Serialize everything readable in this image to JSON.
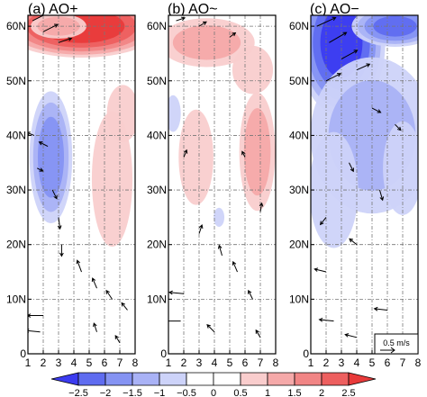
{
  "chart_data": [
    {
      "type": "heatmap",
      "title": "(a) AO+",
      "x": [
        1,
        2,
        3,
        4,
        5,
        6,
        7,
        8
      ],
      "x_tick_labels": [
        "1",
        "2",
        "3",
        "4",
        "5",
        "6",
        "7",
        "8"
      ],
      "y_tick_labels": [
        "0",
        "10N",
        "20N",
        "30N",
        "40N",
        "50N",
        "60N"
      ],
      "y_ticks": [
        0,
        10,
        20,
        30,
        40,
        50,
        60
      ],
      "xlim": [
        1,
        8
      ],
      "ylim": [
        0,
        62
      ],
      "grid": true,
      "blobs": [
        {
          "x": 4.5,
          "y": 60,
          "rx": 5.5,
          "ry": 6,
          "value": 2.8
        },
        {
          "x": 3.0,
          "y": 60,
          "rx": 2.0,
          "ry": 2.5,
          "value": 1.2
        },
        {
          "x": 2.5,
          "y": 36,
          "rx": 1.5,
          "ry": 13,
          "value": -1.6
        },
        {
          "x": 6.5,
          "y": 32,
          "rx": 1.5,
          "ry": 14,
          "value": 0.9
        },
        {
          "x": 7.2,
          "y": 44,
          "rx": 1.2,
          "ry": 6,
          "value": 0.8
        }
      ],
      "vectors": [
        {
          "x": 1.3,
          "y": 61,
          "u": 1.2,
          "v": 0.6
        },
        {
          "x": 2.0,
          "y": 59,
          "u": 1.0,
          "v": 0.5
        },
        {
          "x": 3.0,
          "y": 57,
          "u": 0.9,
          "v": 0.3
        },
        {
          "x": 1.4,
          "y": 40,
          "u": -0.5,
          "v": 0.2
        },
        {
          "x": 2.3,
          "y": 38,
          "u": -0.6,
          "v": 0.3
        },
        {
          "x": 1.6,
          "y": 34,
          "u": 0.4,
          "v": -0.2
        },
        {
          "x": 2.6,
          "y": 30,
          "u": 0.3,
          "v": -0.6
        },
        {
          "x": 3.0,
          "y": 25,
          "u": 0.1,
          "v": -0.8
        },
        {
          "x": 3.2,
          "y": 20,
          "u": 0.0,
          "v": -0.8
        },
        {
          "x": 4.5,
          "y": 15,
          "u": -0.3,
          "v": 0.8
        },
        {
          "x": 5.5,
          "y": 12,
          "u": -0.3,
          "v": 0.7
        },
        {
          "x": 6.5,
          "y": 10,
          "u": -0.4,
          "v": 0.6
        },
        {
          "x": 7.5,
          "y": 8,
          "u": -0.4,
          "v": 0.5
        },
        {
          "x": 2.0,
          "y": 7,
          "u": -1.1,
          "v": 0.0
        },
        {
          "x": 1.8,
          "y": 4,
          "u": -1.0,
          "v": 0.1
        },
        {
          "x": 5.5,
          "y": 4,
          "u": -0.2,
          "v": 0.6
        },
        {
          "x": 7.0,
          "y": 2,
          "u": -0.3,
          "v": 0.5
        }
      ]
    },
    {
      "type": "heatmap",
      "title": "(b) AO~",
      "x": [
        1,
        2,
        3,
        4,
        5,
        6,
        7,
        8
      ],
      "x_tick_labels": [
        "1",
        "2",
        "3",
        "4",
        "5",
        "6",
        "7",
        "8"
      ],
      "y_tick_labels": [
        "0",
        "10N",
        "20N",
        "30N",
        "40N",
        "50N",
        "60N"
      ],
      "y_ticks": [
        0,
        10,
        20,
        30,
        40,
        50,
        60
      ],
      "xlim": [
        1,
        8
      ],
      "ylim": [
        0,
        62
      ],
      "grid": true,
      "blobs": [
        {
          "x": 3.5,
          "y": 57,
          "rx": 3.5,
          "ry": 5,
          "value": 1.0
        },
        {
          "x": 6.5,
          "y": 52,
          "rx": 1.5,
          "ry": 5,
          "value": 0.9
        },
        {
          "x": 6.8,
          "y": 37,
          "rx": 1.3,
          "ry": 12,
          "value": 1.1
        },
        {
          "x": 2.8,
          "y": 36,
          "rx": 1.3,
          "ry": 10,
          "value": 0.8
        },
        {
          "x": 1.3,
          "y": 44,
          "rx": 0.6,
          "ry": 4,
          "value": -0.6
        },
        {
          "x": 4.3,
          "y": 25,
          "rx": 0.4,
          "ry": 2,
          "value": -0.8
        }
      ],
      "vectors": [
        {
          "x": 1.5,
          "y": 61,
          "u": 0.6,
          "v": 0.2
        },
        {
          "x": 3.0,
          "y": 60,
          "u": 0.5,
          "v": 0.3
        },
        {
          "x": 5.0,
          "y": 58,
          "u": 0.4,
          "v": 0.3
        },
        {
          "x": 2.0,
          "y": 36,
          "u": 0.2,
          "v": 0.5
        },
        {
          "x": 6.0,
          "y": 36,
          "u": -0.2,
          "v": 0.4
        },
        {
          "x": 7.0,
          "y": 26,
          "u": 0.1,
          "v": 0.6
        },
        {
          "x": 3.0,
          "y": 22,
          "u": 0.2,
          "v": 0.6
        },
        {
          "x": 4.5,
          "y": 18,
          "u": -0.2,
          "v": 0.7
        },
        {
          "x": 5.5,
          "y": 15,
          "u": -0.3,
          "v": 0.7
        },
        {
          "x": 2.0,
          "y": 11,
          "u": -1.0,
          "v": 0.1
        },
        {
          "x": 6.5,
          "y": 10,
          "u": -0.3,
          "v": 0.6
        },
        {
          "x": 1.8,
          "y": 6,
          "u": -1.1,
          "v": 0.0
        },
        {
          "x": 4.0,
          "y": 4,
          "u": -0.5,
          "v": 0.5
        },
        {
          "x": 7.0,
          "y": 3,
          "u": -0.3,
          "v": 0.5
        }
      ]
    },
    {
      "type": "heatmap",
      "title": "(c) AO−",
      "x": [
        1,
        2,
        3,
        4,
        5,
        6,
        7,
        8
      ],
      "x_tick_labels": [
        "1",
        "2",
        "3",
        "4",
        "5",
        "6",
        "7",
        "8"
      ],
      "y_tick_labels": [
        "0",
        "10N",
        "20N",
        "30N",
        "40N",
        "50N",
        "60N"
      ],
      "y_ticks": [
        0,
        10,
        20,
        30,
        40,
        50,
        60
      ],
      "xlim": [
        1,
        8
      ],
      "ylim": [
        0,
        62
      ],
      "grid": true,
      "blobs": [
        {
          "x": 3.0,
          "y": 57,
          "rx": 3.0,
          "ry": 14,
          "value": -2.6
        },
        {
          "x": 6.5,
          "y": 60,
          "rx": 3.0,
          "ry": 4,
          "value": -2.0
        },
        {
          "x": 5.0,
          "y": 40,
          "rx": 4.5,
          "ry": 16,
          "value": -1.0
        },
        {
          "x": 2.5,
          "y": 30,
          "rx": 1.8,
          "ry": 12,
          "value": -0.9
        },
        {
          "x": 7.0,
          "y": 34,
          "rx": 1.5,
          "ry": 10,
          "value": -0.7
        }
      ],
      "vectors": [
        {
          "x": 1.4,
          "y": 60,
          "u": 1.3,
          "v": 0.6
        },
        {
          "x": 2.2,
          "y": 57,
          "u": 1.2,
          "v": 0.7
        },
        {
          "x": 3.0,
          "y": 54,
          "u": 1.1,
          "v": 0.6
        },
        {
          "x": 2.0,
          "y": 50,
          "u": 1.0,
          "v": 0.5
        },
        {
          "x": 4.0,
          "y": 52,
          "u": 0.9,
          "v": 0.4
        },
        {
          "x": 5.0,
          "y": 45,
          "u": 0.6,
          "v": -0.3
        },
        {
          "x": 6.5,
          "y": 42,
          "u": 0.4,
          "v": -0.4
        },
        {
          "x": 3.5,
          "y": 35,
          "u": 0.3,
          "v": -0.6
        },
        {
          "x": 5.5,
          "y": 30,
          "u": 0.2,
          "v": -0.7
        },
        {
          "x": 2.0,
          "y": 25,
          "u": -0.4,
          "v": -0.5
        },
        {
          "x": 4.0,
          "y": 20,
          "u": -0.5,
          "v": 0.4
        },
        {
          "x": 2.0,
          "y": 15,
          "u": -0.8,
          "v": 0.2
        },
        {
          "x": 6.0,
          "y": 8,
          "u": -0.9,
          "v": 0.1
        },
        {
          "x": 2.5,
          "y": 6,
          "u": -1.0,
          "v": 0.1
        },
        {
          "x": 4.0,
          "y": 3,
          "u": -0.8,
          "v": 0.2
        }
      ],
      "reference_vector_label": "0.5 m/s"
    }
  ],
  "colorbar": {
    "boundaries": [
      -3,
      -2.5,
      -2,
      -1.5,
      -1,
      -0.5,
      0,
      0.5,
      1,
      1.5,
      2,
      2.5,
      3
    ],
    "tick_labels": [
      "−2.5",
      "−2",
      "−1.5",
      "−1",
      "−0.5",
      "0",
      "0.5",
      "1",
      "1.5",
      "2",
      "2.5"
    ],
    "tick_values": [
      -2.5,
      -2,
      -1.5,
      -1,
      -0.5,
      0,
      0.5,
      1,
      1.5,
      2,
      2.5
    ],
    "colors": [
      "#3b3bf0",
      "#5f6cf0",
      "#8593f3",
      "#a9b2f6",
      "#cdd3f9",
      "#ffffff",
      "#ffffff",
      "#f9cdcd",
      "#f5a9a9",
      "#f18585",
      "#ed5f5f",
      "#e83a3a"
    ]
  }
}
